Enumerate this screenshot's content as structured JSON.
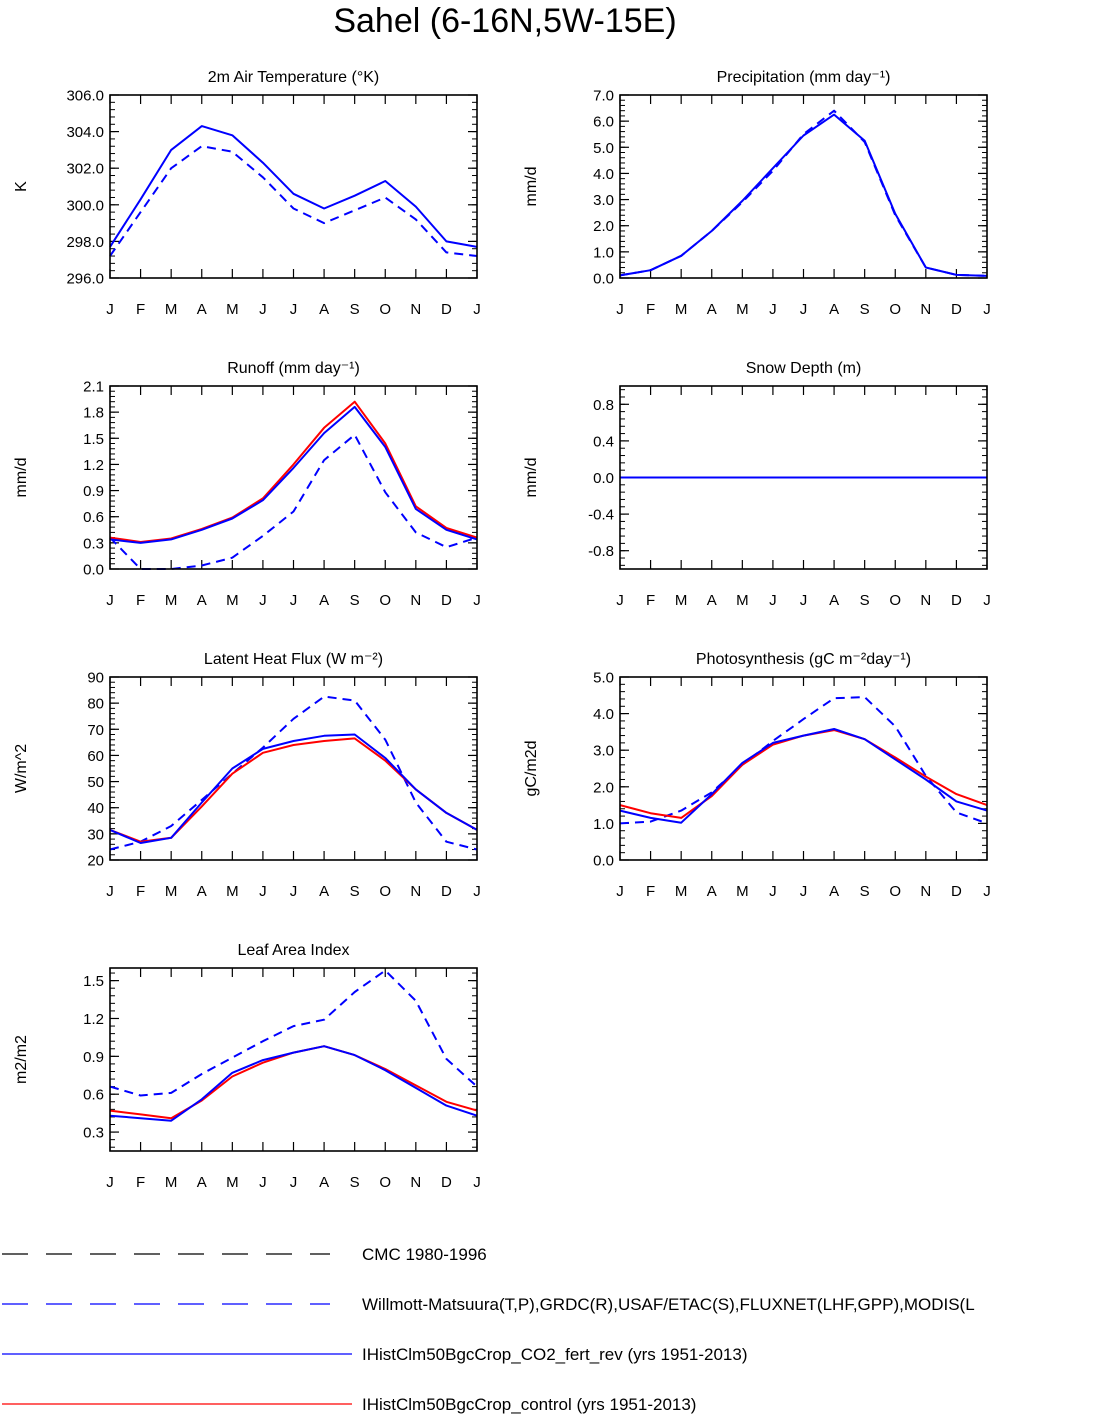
{
  "title": "Sahel (6-16N,5W-15E)",
  "colors": {
    "obs": "#0000ff",
    "cmc": "#000000",
    "co2": "#0000ff",
    "control": "#ff0000"
  },
  "chart_data": [
    {
      "type": "line",
      "title": "2m Air Temperature (°K)",
      "ylabel": "K",
      "ylim": [
        296,
        306
      ],
      "yticks": [
        "306.0",
        "304.0",
        "302.0",
        "300.0",
        "298.0",
        "296.0"
      ],
      "ytick_values": [
        306,
        304,
        302,
        300,
        298,
        296
      ],
      "categories": [
        "J",
        "F",
        "M",
        "A",
        "M",
        "J",
        "J",
        "A",
        "S",
        "O",
        "N",
        "D",
        "J"
      ],
      "series": [
        {
          "name": "Willmott-Matsuura(T,P),GRDC(R),USAF/ETAC(S),FLUXNET(LHF,GPP),MODIS(L",
          "style": "dash",
          "color": "#0000ff",
          "values": [
            297.2,
            299.6,
            302.0,
            303.2,
            302.9,
            301.5,
            299.8,
            299.0,
            299.7,
            300.4,
            299.2,
            297.4,
            297.2
          ]
        },
        {
          "name": "IHistClm50BgcCrop_CO2_fert_rev (yrs 1951-2013)",
          "style": "solid",
          "color": "#0000ff",
          "values": [
            297.7,
            300.3,
            303.0,
            304.3,
            303.8,
            302.3,
            300.6,
            299.8,
            300.5,
            301.3,
            299.9,
            298.0,
            297.7
          ]
        }
      ]
    },
    {
      "type": "line",
      "title": "Precipitation (mm day⁻¹)",
      "ylabel": "mm/d",
      "ylim": [
        0,
        7
      ],
      "yticks": [
        "7.0",
        "6.0",
        "5.0",
        "4.0",
        "3.0",
        "2.0",
        "1.0",
        "0.0"
      ],
      "ytick_values": [
        7,
        6,
        5,
        4,
        3,
        2,
        1,
        0
      ],
      "categories": [
        "J",
        "F",
        "M",
        "A",
        "M",
        "J",
        "J",
        "A",
        "S",
        "O",
        "N",
        "D",
        "J"
      ],
      "series": [
        {
          "name": "Willmott-Matsuura(T,P),GRDC(R),USAF/ETAC(S),FLUXNET(LHF,GPP),MODIS(L",
          "style": "dash",
          "color": "#0000ff",
          "values": [
            0.1,
            0.3,
            0.85,
            1.8,
            2.9,
            4.1,
            5.5,
            6.4,
            5.2,
            2.4,
            0.4,
            0.12,
            0.08
          ]
        },
        {
          "name": "IHistClm50BgcCrop_CO2_fert_rev (yrs 1951-2013)",
          "style": "solid",
          "color": "#0000ff",
          "values": [
            0.1,
            0.3,
            0.85,
            1.8,
            2.95,
            4.2,
            5.45,
            6.25,
            5.25,
            2.45,
            0.4,
            0.12,
            0.08
          ]
        }
      ]
    },
    {
      "type": "line",
      "title": "Runoff (mm day⁻¹)",
      "ylabel": "mm/d",
      "ylim": [
        0,
        2.1
      ],
      "yticks": [
        "2.1",
        "1.8",
        "1.5",
        "1.2",
        "0.9",
        "0.6",
        "0.3",
        "0.0"
      ],
      "ytick_values": [
        2.1,
        1.8,
        1.5,
        1.2,
        0.9,
        0.6,
        0.3,
        0
      ],
      "categories": [
        "J",
        "F",
        "M",
        "A",
        "M",
        "J",
        "J",
        "A",
        "S",
        "O",
        "N",
        "D",
        "J"
      ],
      "series": [
        {
          "name": "Willmott-Matsuura(T,P),GRDC(R),USAF/ETAC(S),FLUXNET(LHF,GPP),MODIS(L",
          "style": "dash",
          "color": "#0000ff",
          "values": [
            0.36,
            0.0,
            0.0,
            0.04,
            0.13,
            0.38,
            0.66,
            1.25,
            1.54,
            0.88,
            0.42,
            0.25,
            0.36
          ]
        },
        {
          "name": "IHistClm50BgcCrop_control (yrs 1951-2013)",
          "style": "solid",
          "color": "#ff0000",
          "values": [
            0.36,
            0.31,
            0.35,
            0.46,
            0.59,
            0.81,
            1.2,
            1.62,
            1.92,
            1.44,
            0.72,
            0.47,
            0.36
          ]
        },
        {
          "name": "IHistClm50BgcCrop_CO2_fert_rev (yrs 1951-2013)",
          "style": "solid",
          "color": "#0000ff",
          "values": [
            0.34,
            0.3,
            0.34,
            0.45,
            0.58,
            0.79,
            1.16,
            1.56,
            1.86,
            1.4,
            0.69,
            0.45,
            0.34
          ]
        }
      ]
    },
    {
      "type": "line",
      "title": "Snow Depth (m)",
      "ylabel": "mm/d",
      "ylim": [
        -1.0,
        1.0
      ],
      "yticks": [
        "0.8",
        "0.4",
        "0.0",
        "-0.4",
        "-0.8"
      ],
      "ytick_values": [
        0.8,
        0.4,
        0,
        -0.4,
        -0.8
      ],
      "categories": [
        "J",
        "F",
        "M",
        "A",
        "M",
        "J",
        "J",
        "A",
        "S",
        "O",
        "N",
        "D",
        "J"
      ],
      "series": [
        {
          "name": "IHistClm50BgcCrop_control (yrs 1951-2013)",
          "style": "solid",
          "color": "#ff0000",
          "values": [
            0,
            0,
            0,
            0,
            0,
            0,
            0,
            0,
            0,
            0,
            0,
            0,
            0
          ]
        },
        {
          "name": "IHistClm50BgcCrop_CO2_fert_rev (yrs 1951-2013)",
          "style": "solid",
          "color": "#0000ff",
          "values": [
            0,
            0,
            0,
            0,
            0,
            0,
            0,
            0,
            0,
            0,
            0,
            0,
            0
          ]
        },
        {
          "name": "Willmott-Matsuura(T,P),GRDC(R),USAF/ETAC(S),FLUXNET(LHF,GPP),MODIS(L",
          "style": "dash",
          "color": "#0000ff",
          "values": [
            0,
            0,
            0,
            0,
            0,
            0,
            0,
            0,
            0,
            0,
            0,
            0,
            0
          ]
        }
      ]
    },
    {
      "type": "line",
      "title": "Latent Heat Flux (W m⁻²)",
      "ylabel": "W/m^2",
      "ylim": [
        20,
        90
      ],
      "yticks": [
        "90",
        "80",
        "70",
        "60",
        "50",
        "40",
        "30",
        "20"
      ],
      "ytick_values": [
        90,
        80,
        70,
        60,
        50,
        40,
        30,
        20
      ],
      "categories": [
        "J",
        "F",
        "M",
        "A",
        "M",
        "J",
        "J",
        "A",
        "S",
        "O",
        "N",
        "D",
        "J"
      ],
      "series": [
        {
          "name": "Willmott-Matsuura(T,P),GRDC(R),USAF/ETAC(S),FLUXNET(LHF,GPP),MODIS(L",
          "style": "dash",
          "color": "#0000ff",
          "values": [
            24,
            27,
            33,
            43,
            53,
            63,
            74,
            82.5,
            81,
            66,
            42,
            27,
            24
          ]
        },
        {
          "name": "IHistClm50BgcCrop_control (yrs 1951-2013)",
          "style": "solid",
          "color": "#ff0000",
          "values": [
            31.5,
            27,
            28.5,
            40.5,
            53,
            61,
            64,
            65.5,
            66.5,
            58,
            47,
            38,
            31.5
          ]
        },
        {
          "name": "IHistClm50BgcCrop_CO2_fert_rev (yrs 1951-2013)",
          "style": "solid",
          "color": "#0000ff",
          "values": [
            31.5,
            26.5,
            28.5,
            42,
            55,
            62.5,
            65.5,
            67.5,
            68,
            59,
            47,
            38,
            31.5
          ]
        }
      ]
    },
    {
      "type": "line",
      "title": "Photosynthesis (gC m⁻²day⁻¹)",
      "ylabel": "gC/m2d",
      "ylim": [
        0,
        5
      ],
      "yticks": [
        "5.0",
        "4.0",
        "3.0",
        "2.0",
        "1.0",
        "0.0"
      ],
      "ytick_values": [
        5,
        4,
        3,
        2,
        1,
        0
      ],
      "categories": [
        "J",
        "F",
        "M",
        "A",
        "M",
        "J",
        "J",
        "A",
        "S",
        "O",
        "N",
        "D",
        "J"
      ],
      "series": [
        {
          "name": "Willmott-Matsuura(T,P),GRDC(R),USAF/ETAC(S),FLUXNET(LHF,GPP),MODIS(L",
          "style": "dash",
          "color": "#0000ff",
          "values": [
            1.0,
            1.05,
            1.35,
            1.85,
            2.6,
            3.25,
            3.85,
            4.42,
            4.45,
            3.65,
            2.3,
            1.3,
            1.0
          ]
        },
        {
          "name": "IHistClm50BgcCrop_control (yrs 1951-2013)",
          "style": "solid",
          "color": "#ff0000",
          "values": [
            1.5,
            1.28,
            1.15,
            1.75,
            2.6,
            3.15,
            3.4,
            3.55,
            3.3,
            2.8,
            2.28,
            1.8,
            1.5
          ]
        },
        {
          "name": "IHistClm50BgcCrop_CO2_fert_rev (yrs 1951-2013)",
          "style": "solid",
          "color": "#0000ff",
          "values": [
            1.35,
            1.15,
            1.02,
            1.8,
            2.65,
            3.2,
            3.4,
            3.58,
            3.3,
            2.75,
            2.2,
            1.6,
            1.35
          ]
        }
      ]
    },
    {
      "type": "line",
      "title": "Leaf Area Index",
      "ylabel": "m2/m2",
      "ylim": [
        0.15,
        1.6
      ],
      "yticks": [
        "1.5",
        "1.2",
        "0.9",
        "0.6",
        "0.3"
      ],
      "ytick_values": [
        1.5,
        1.2,
        0.9,
        0.6,
        0.3
      ],
      "categories": [
        "J",
        "F",
        "M",
        "A",
        "M",
        "J",
        "J",
        "A",
        "S",
        "O",
        "N",
        "D",
        "J"
      ],
      "series": [
        {
          "name": "Willmott-Matsuura(T,P),GRDC(R),USAF/ETAC(S),FLUXNET(LHF,GPP),MODIS(L",
          "style": "dash",
          "color": "#0000ff",
          "values": [
            0.66,
            0.59,
            0.61,
            0.76,
            0.89,
            1.02,
            1.14,
            1.19,
            1.41,
            1.58,
            1.34,
            0.88,
            0.66
          ]
        },
        {
          "name": "IHistClm50BgcCrop_control (yrs 1951-2013)",
          "style": "solid",
          "color": "#ff0000",
          "values": [
            0.47,
            0.44,
            0.41,
            0.55,
            0.74,
            0.85,
            0.93,
            0.98,
            0.91,
            0.8,
            0.67,
            0.54,
            0.47
          ]
        },
        {
          "name": "IHistClm50BgcCrop_CO2_fert_rev (yrs 1951-2013)",
          "style": "solid",
          "color": "#0000ff",
          "values": [
            0.43,
            0.41,
            0.39,
            0.56,
            0.77,
            0.87,
            0.93,
            0.98,
            0.91,
            0.79,
            0.65,
            0.51,
            0.43
          ]
        }
      ]
    }
  ],
  "legend": [
    {
      "label": "CMC 1980-1996",
      "style": "dash",
      "color": "#000000"
    },
    {
      "label": "Willmott-Matsuura(T,P),GRDC(R),USAF/ETAC(S),FLUXNET(LHF,GPP),MODIS(L",
      "style": "dash",
      "color": "#0000ff"
    },
    {
      "label": "IHistClm50BgcCrop_CO2_fert_rev (yrs 1951-2013)",
      "style": "solid",
      "color": "#0000ff"
    },
    {
      "label": "IHistClm50BgcCrop_control (yrs 1951-2013)",
      "style": "solid",
      "color": "#ff0000"
    }
  ]
}
